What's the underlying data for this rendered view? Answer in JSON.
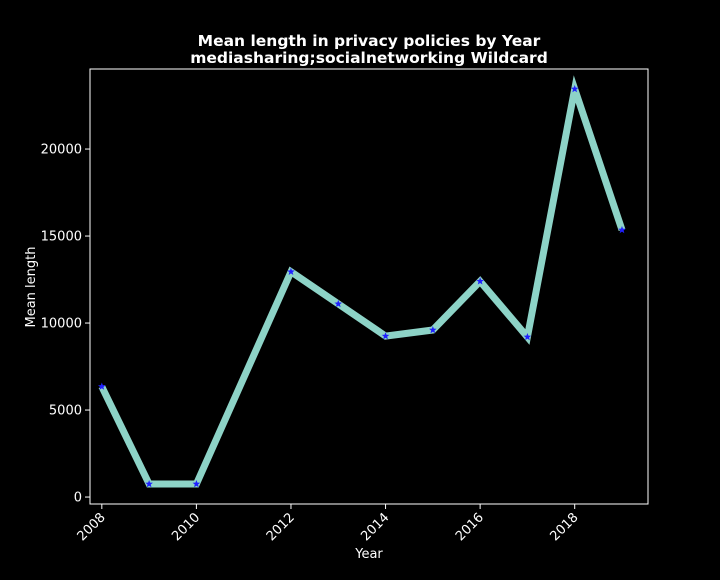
{
  "chart_data": {
    "type": "line",
    "title_line1": "Mean length in privacy policies by Year",
    "title_line2": "mediasharing;socialnetworking Wildcard",
    "xlabel": "Year",
    "ylabel": "Mean length",
    "x": [
      2008,
      2009,
      2010,
      2012,
      2013,
      2014,
      2015,
      2016,
      2017,
      2018,
      2019
    ],
    "y": [
      6350,
      750,
      750,
      12950,
      11100,
      9250,
      9600,
      12400,
      9200,
      23450,
      15350
    ],
    "xlim": [
      2007.75,
      2019.55
    ],
    "ylim": [
      -400,
      24600
    ],
    "xticks": [
      2008,
      2010,
      2012,
      2014,
      2016,
      2018
    ],
    "yticks": [
      0,
      5000,
      10000,
      15000,
      20000
    ],
    "grid": false,
    "colors": {
      "background": "#000000",
      "line": "#8dd3c7",
      "marker": "#1f1fff",
      "axes": "#ffffff",
      "text": "#ffffff"
    }
  }
}
